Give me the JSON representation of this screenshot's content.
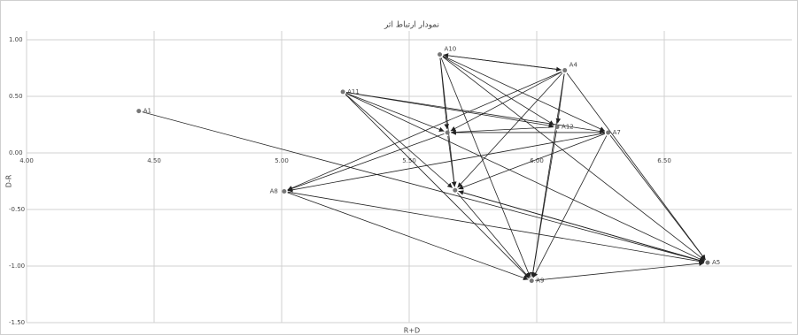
{
  "chart_data": {
    "type": "scatter",
    "title": "نمودار ارتباط اثر",
    "x_label": "R+D",
    "y_label": "D-R",
    "labels": [
      "A1",
      "A10",
      "A4",
      "A11",
      "A12",
      "A7",
      null,
      "A8",
      null,
      "A9",
      "A5"
    ],
    "x": [
      4.44,
      5.62,
      6.11,
      5.24,
      6.08,
      6.28,
      5.65,
      5.01,
      5.68,
      5.98,
      6.67
    ],
    "y": [
      0.37,
      0.87,
      0.73,
      0.54,
      0.23,
      0.18,
      0.18,
      -0.34,
      -0.33,
      -1.13,
      -0.97
    ],
    "color": "#777777",
    "links": [
      [
        0,
        10
      ],
      [
        1,
        2
      ],
      [
        2,
        1
      ],
      [
        1,
        6
      ],
      [
        1,
        8
      ],
      [
        1,
        9
      ],
      [
        1,
        4
      ],
      [
        1,
        5
      ],
      [
        1,
        10
      ],
      [
        2,
        6
      ],
      [
        2,
        8
      ],
      [
        2,
        9
      ],
      [
        2,
        7
      ],
      [
        2,
        10
      ],
      [
        2,
        4
      ],
      [
        3,
        6
      ],
      [
        3,
        4
      ],
      [
        3,
        5
      ],
      [
        3,
        8
      ],
      [
        3,
        9
      ],
      [
        3,
        10
      ],
      [
        4,
        6
      ],
      [
        5,
        6
      ],
      [
        5,
        8
      ],
      [
        5,
        7
      ],
      [
        5,
        9
      ],
      [
        5,
        10
      ],
      [
        6,
        8
      ],
      [
        8,
        9
      ],
      [
        8,
        10
      ],
      [
        7,
        9
      ],
      [
        7,
        10
      ],
      [
        9,
        10
      ],
      [
        6,
        7
      ],
      [
        4,
        9
      ],
      [
        10,
        8
      ]
    ],
    "xlim": [
      4.0,
      7.0
    ],
    "ylim": [
      -1.5,
      1.0
    ],
    "xticks": [
      {
        "value": 4.0,
        "label": "4.00"
      },
      {
        "value": 4.5,
        "label": "4.50"
      },
      {
        "value": 5.0,
        "label": "5.00"
      },
      {
        "value": 5.5,
        "label": "5.50"
      },
      {
        "value": 6.0,
        "label": "6.00"
      },
      {
        "value": 6.5,
        "label": "6.50"
      }
    ],
    "yticks": [
      {
        "value": 1.0,
        "label": "1.00"
      },
      {
        "value": 0.5,
        "label": "0.50"
      },
      {
        "value": 0.0,
        "label": "0.00"
      },
      {
        "value": -0.5,
        "label": "-0.50"
      },
      {
        "value": -1.0,
        "label": "-1.00"
      },
      {
        "value": -1.5,
        "label": "-1.50"
      }
    ],
    "grid": true
  }
}
